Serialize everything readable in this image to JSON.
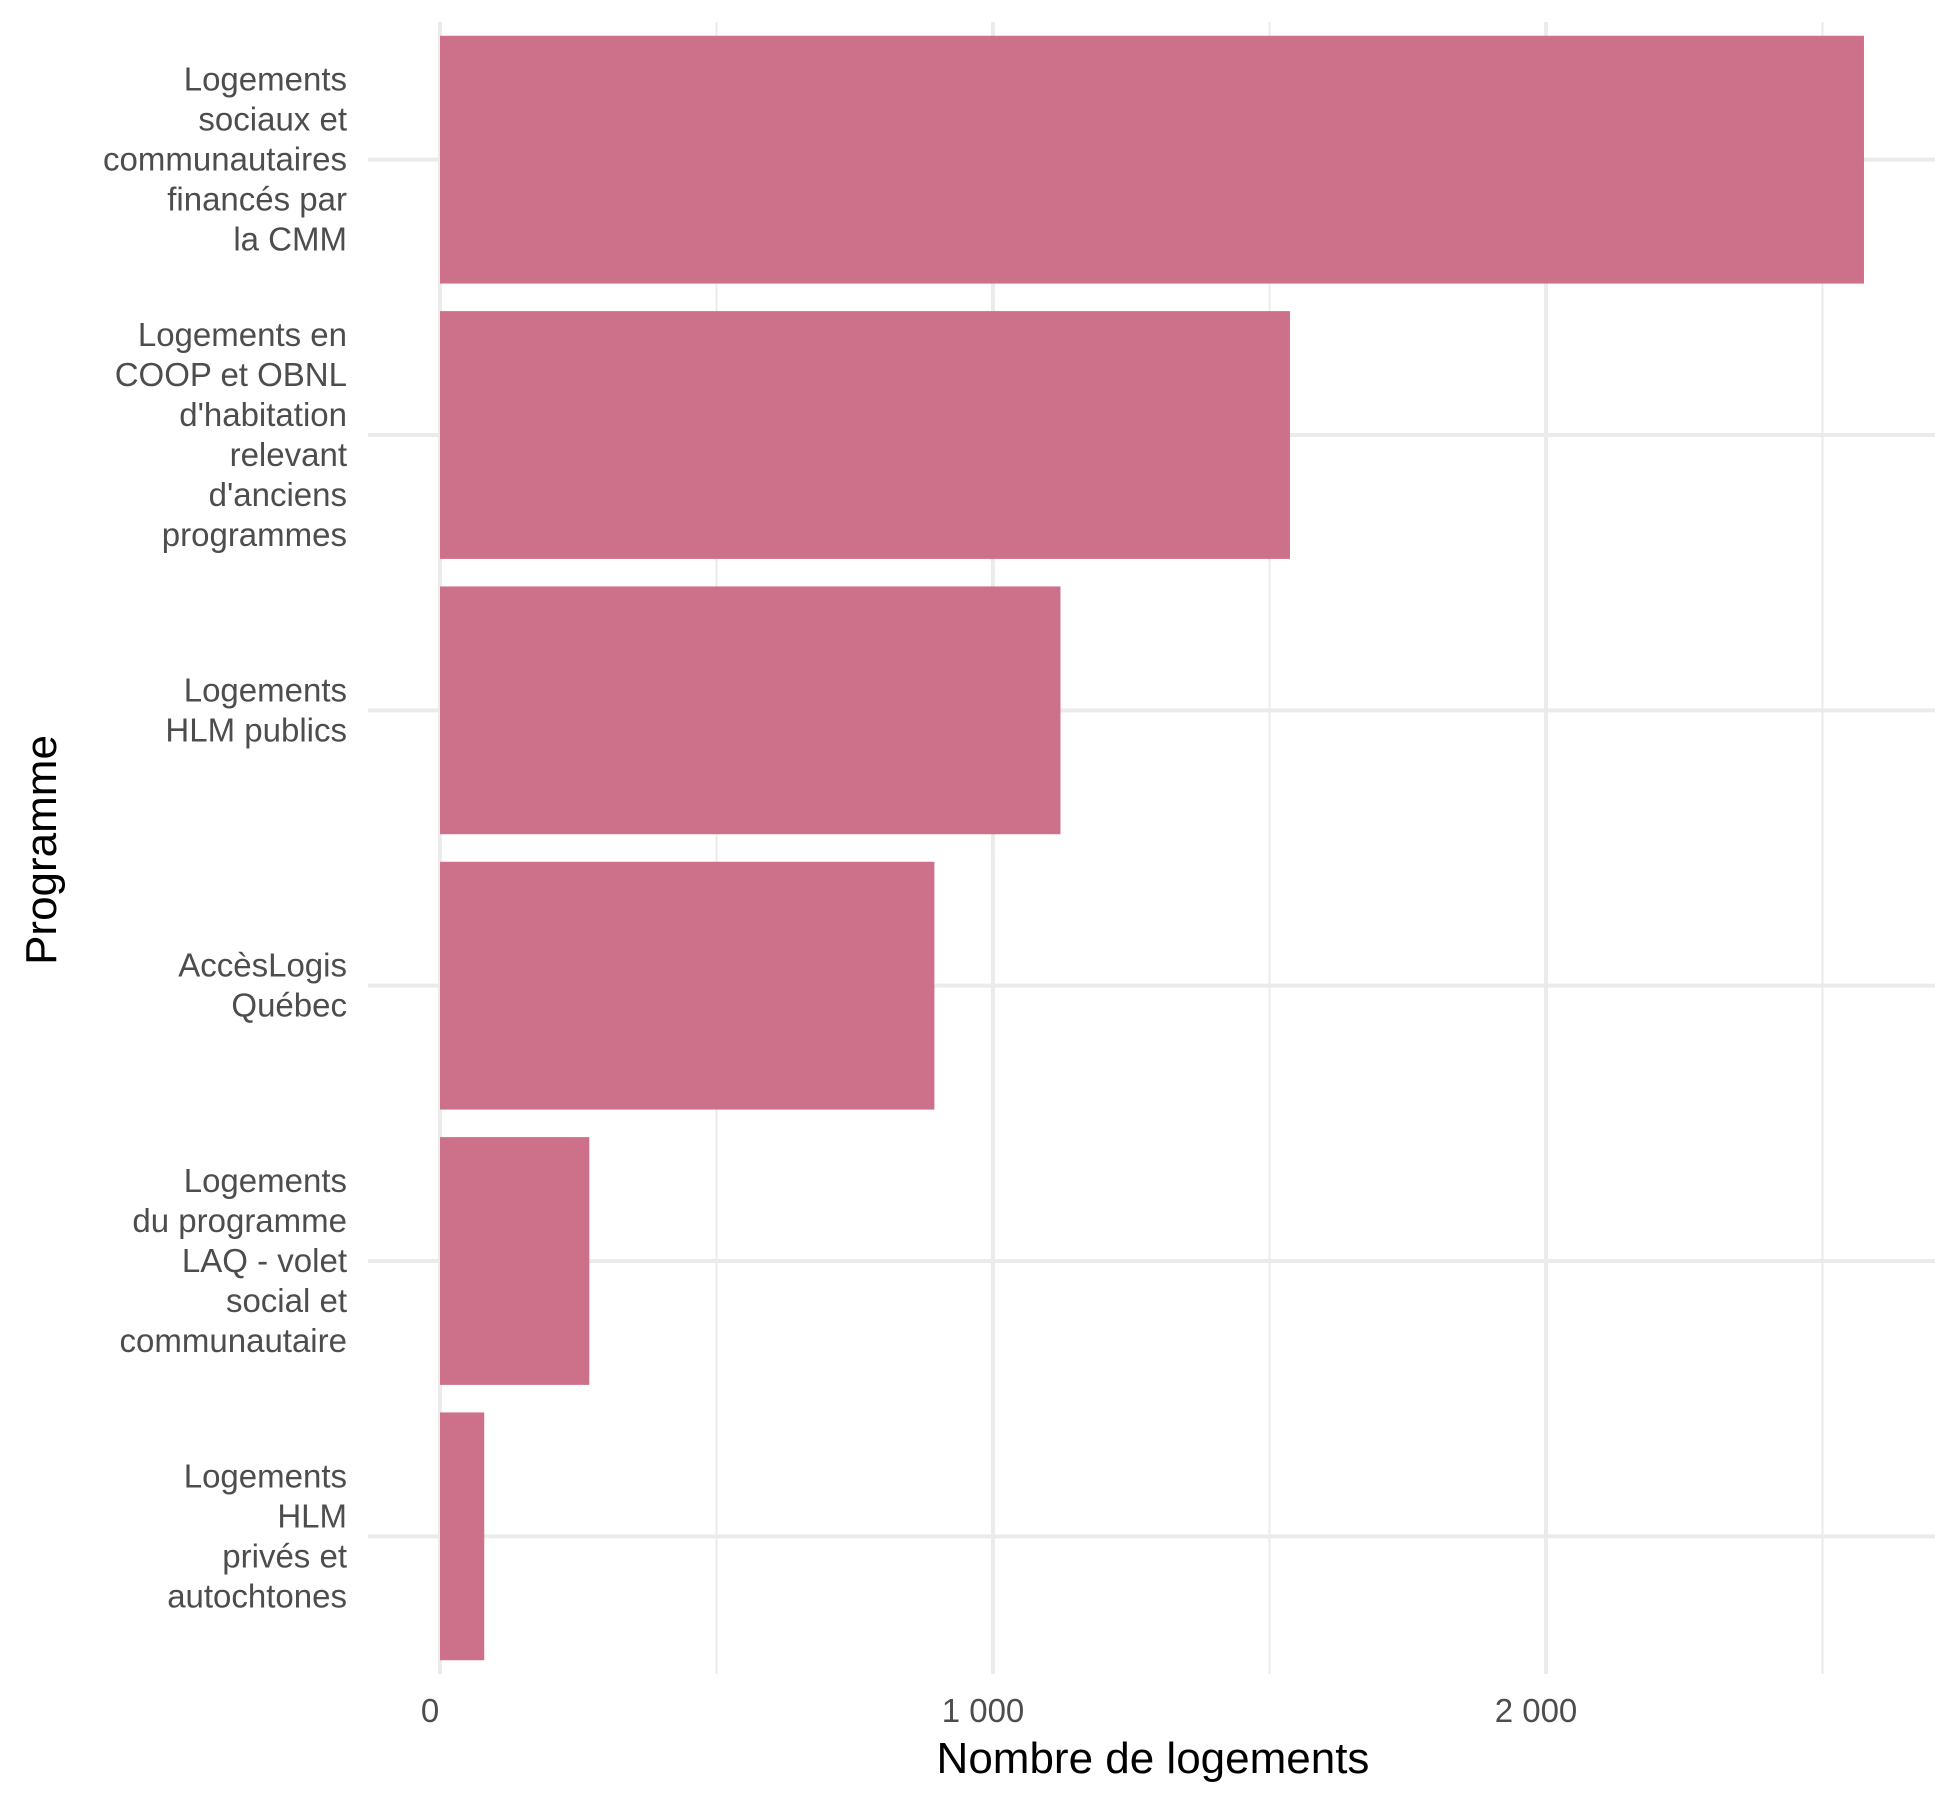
{
  "chart_data": {
    "type": "bar",
    "orientation": "horizontal",
    "title": "",
    "xlabel": "Nombre de logements",
    "ylabel": "Programme",
    "xlim": [
      0,
      2700
    ],
    "x_ticks": [
      0,
      1000,
      2000
    ],
    "x_tick_labels": [
      "0",
      "1 000",
      "2 000"
    ],
    "grid": true,
    "bar_color": "#CD7089",
    "categories": [
      [
        "Logements",
        "sociaux et",
        "communautaires",
        "financés par",
        "la CMM"
      ],
      [
        "Logements en",
        "COOP et OBNL",
        "d'habitation",
        "relevant",
        "d'anciens",
        "programmes"
      ],
      [
        "Logements",
        "HLM publics"
      ],
      [
        "AccèsLogis",
        "Québec"
      ],
      [
        "Logements",
        "du programme",
        "LAQ - volet",
        "social et",
        "communautaire"
      ],
      [
        "Logements",
        "HLM",
        "privés et",
        "autochtones"
      ]
    ],
    "values": [
      2575,
      1537,
      1122,
      894,
      270,
      80
    ]
  }
}
